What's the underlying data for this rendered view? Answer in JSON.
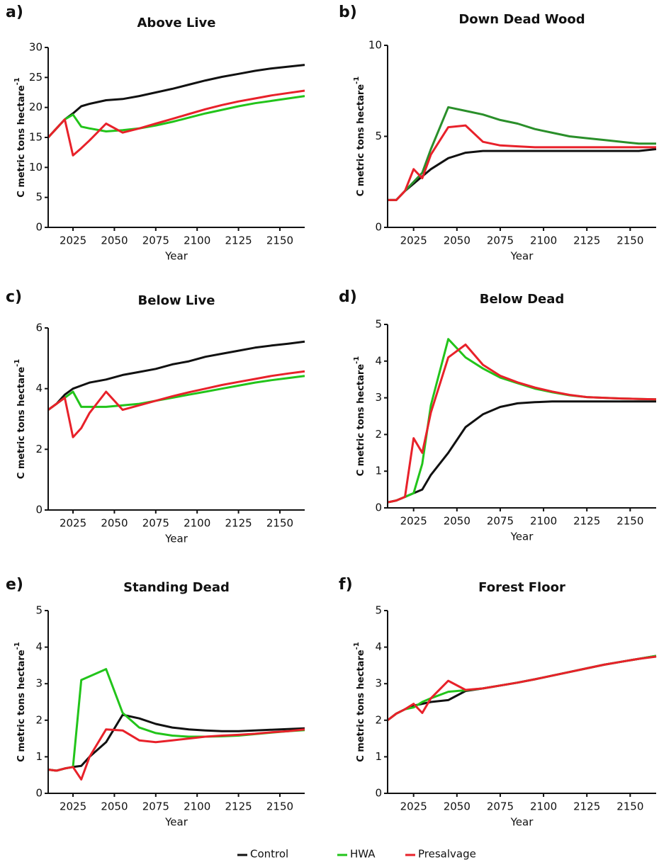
{
  "chart_data": [
    {
      "type": "line",
      "panel_label": "a)",
      "title": "Above Live",
      "xlabel": "Year",
      "ylabel": "C metric tons hectare",
      "ylabel_sup": "-1",
      "x": [
        2010,
        2015,
        2020,
        2025,
        2030,
        2035,
        2045,
        2055,
        2065,
        2075,
        2085,
        2095,
        2105,
        2115,
        2125,
        2135,
        2145,
        2155,
        2165
      ],
      "xlim": [
        2010,
        2165
      ],
      "xticks": [
        2025,
        2050,
        2075,
        2100,
        2125,
        2150
      ],
      "ylim": [
        0,
        30
      ],
      "yticks": [
        0,
        5,
        10,
        15,
        20,
        25,
        30
      ],
      "series": [
        {
          "name": "Control",
          "color": "#111111",
          "values": [
            15,
            16.5,
            18,
            19,
            20.2,
            20.6,
            21.2,
            21.4,
            21.9,
            22.5,
            23.1,
            23.8,
            24.5,
            25.1,
            25.6,
            26.1,
            26.5,
            26.8,
            27.1
          ]
        },
        {
          "name": "HWA",
          "color": "#22c41a",
          "values": [
            15,
            16.5,
            18,
            18.8,
            16.8,
            16.5,
            16,
            16.2,
            16.5,
            17,
            17.6,
            18.3,
            19,
            19.6,
            20.2,
            20.7,
            21.1,
            21.5,
            21.9
          ]
        },
        {
          "name": "Presalvage",
          "color": "#e8212a",
          "values": [
            15,
            16.5,
            18,
            12,
            13.2,
            14.5,
            17.3,
            15.8,
            16.5,
            17.3,
            18.1,
            18.9,
            19.7,
            20.4,
            21,
            21.5,
            22,
            22.4,
            22.8
          ]
        }
      ]
    },
    {
      "type": "line",
      "panel_label": "b)",
      "title": "Down Dead Wood",
      "xlabel": "Year",
      "ylabel": "C metric tons hectare",
      "ylabel_sup": "-1",
      "x": [
        2010,
        2015,
        2020,
        2025,
        2030,
        2035,
        2045,
        2055,
        2065,
        2075,
        2085,
        2095,
        2105,
        2115,
        2125,
        2135,
        2145,
        2155,
        2165
      ],
      "xlim": [
        2010,
        2165
      ],
      "xticks": [
        2025,
        2050,
        2075,
        2100,
        2125,
        2150
      ],
      "ylim": [
        0,
        10
      ],
      "yticks": [
        0,
        5,
        10
      ],
      "series": [
        {
          "name": "Control",
          "color": "#111111",
          "values": [
            1.5,
            1.5,
            2,
            2.4,
            2.8,
            3.2,
            3.8,
            4.1,
            4.2,
            4.2,
            4.2,
            4.2,
            4.2,
            4.2,
            4.2,
            4.2,
            4.2,
            4.2,
            4.3
          ]
        },
        {
          "name": "HWA",
          "color": "#2a8f2a",
          "values": [
            1.5,
            1.5,
            2,
            2.5,
            3,
            4.3,
            6.6,
            6.4,
            6.2,
            5.9,
            5.7,
            5.4,
            5.2,
            5,
            4.9,
            4.8,
            4.7,
            4.6,
            4.6
          ]
        },
        {
          "name": "Presalvage",
          "color": "#e8212a",
          "values": [
            1.5,
            1.5,
            2,
            3.2,
            2.7,
            4,
            5.5,
            5.6,
            4.7,
            4.5,
            4.45,
            4.4,
            4.4,
            4.4,
            4.4,
            4.4,
            4.4,
            4.4,
            4.4
          ]
        }
      ]
    },
    {
      "type": "line",
      "panel_label": "c)",
      "title": "Below Live",
      "xlabel": "Year",
      "ylabel": "C metric tons hectare",
      "ylabel_sup": "-1",
      "x": [
        2010,
        2015,
        2020,
        2025,
        2030,
        2035,
        2045,
        2055,
        2065,
        2075,
        2085,
        2095,
        2105,
        2115,
        2125,
        2135,
        2145,
        2155,
        2165
      ],
      "xlim": [
        2010,
        2165
      ],
      "xticks": [
        2025,
        2050,
        2075,
        2100,
        2125,
        2150
      ],
      "ylim": [
        0,
        6
      ],
      "yticks": [
        0,
        2,
        4,
        6
      ],
      "series": [
        {
          "name": "Control",
          "color": "#111111",
          "values": [
            3.3,
            3.5,
            3.8,
            4,
            4.1,
            4.2,
            4.3,
            4.45,
            4.55,
            4.65,
            4.8,
            4.9,
            5.05,
            5.15,
            5.25,
            5.35,
            5.42,
            5.48,
            5.55
          ]
        },
        {
          "name": "HWA",
          "color": "#22c41a",
          "values": [
            3.3,
            3.5,
            3.7,
            3.9,
            3.4,
            3.4,
            3.4,
            3.45,
            3.5,
            3.6,
            3.7,
            3.8,
            3.9,
            4,
            4.1,
            4.2,
            4.28,
            4.35,
            4.42
          ]
        },
        {
          "name": "Presalvage",
          "color": "#e8212a",
          "values": [
            3.3,
            3.5,
            3.7,
            2.4,
            2.7,
            3.2,
            3.9,
            3.3,
            3.45,
            3.6,
            3.75,
            3.88,
            4,
            4.12,
            4.22,
            4.32,
            4.42,
            4.5,
            4.57
          ]
        }
      ]
    },
    {
      "type": "line",
      "panel_label": "d)",
      "title": "Below Dead",
      "xlabel": "Year",
      "ylabel": "C metric tons hectare",
      "ylabel_sup": "-1",
      "x": [
        2010,
        2015,
        2020,
        2025,
        2030,
        2035,
        2045,
        2055,
        2065,
        2075,
        2085,
        2095,
        2105,
        2115,
        2125,
        2135,
        2145,
        2155,
        2165
      ],
      "xlim": [
        2010,
        2165
      ],
      "xticks": [
        2025,
        2050,
        2075,
        2100,
        2125,
        2150
      ],
      "ylim": [
        0,
        5
      ],
      "yticks": [
        0,
        1,
        2,
        3,
        4,
        5
      ],
      "series": [
        {
          "name": "Control",
          "color": "#111111",
          "values": [
            0.15,
            0.2,
            0.3,
            0.4,
            0.5,
            0.9,
            1.5,
            2.2,
            2.55,
            2.75,
            2.85,
            2.88,
            2.9,
            2.9,
            2.9,
            2.9,
            2.9,
            2.9,
            2.9
          ]
        },
        {
          "name": "HWA",
          "color": "#22c41a",
          "values": [
            0.15,
            0.2,
            0.3,
            0.4,
            1.2,
            2.8,
            4.6,
            4.1,
            3.8,
            3.55,
            3.4,
            3.25,
            3.15,
            3.07,
            3.02,
            3,
            2.98,
            2.97,
            2.96
          ]
        },
        {
          "name": "Presalvage",
          "color": "#e8212a",
          "values": [
            0.15,
            0.2,
            0.3,
            1.9,
            1.5,
            2.6,
            4.1,
            4.45,
            3.9,
            3.6,
            3.42,
            3.28,
            3.17,
            3.08,
            3.02,
            3,
            2.98,
            2.97,
            2.96
          ]
        }
      ]
    },
    {
      "type": "line",
      "panel_label": "e)",
      "title": "Standing Dead",
      "xlabel": "Year",
      "ylabel": "C metric tons hectare",
      "ylabel_sup": "-1",
      "x": [
        2010,
        2015,
        2020,
        2025,
        2030,
        2035,
        2045,
        2055,
        2065,
        2075,
        2085,
        2095,
        2105,
        2115,
        2125,
        2135,
        2145,
        2155,
        2165
      ],
      "xlim": [
        2010,
        2165
      ],
      "xticks": [
        2025,
        2050,
        2075,
        2100,
        2125,
        2150
      ],
      "ylim": [
        0,
        5
      ],
      "yticks": [
        0,
        1,
        2,
        3,
        4,
        5
      ],
      "series": [
        {
          "name": "Control",
          "color": "#111111",
          "values": [
            0.65,
            0.62,
            0.68,
            0.72,
            0.75,
            1,
            1.4,
            2.15,
            2.05,
            1.9,
            1.8,
            1.75,
            1.72,
            1.7,
            1.7,
            1.72,
            1.74,
            1.76,
            1.78
          ]
        },
        {
          "name": "HWA",
          "color": "#22c41a",
          "values": [
            0.65,
            0.62,
            0.68,
            0.72,
            3.1,
            3.2,
            3.4,
            2.2,
            1.8,
            1.65,
            1.58,
            1.55,
            1.55,
            1.56,
            1.58,
            1.62,
            1.66,
            1.7,
            1.73
          ]
        },
        {
          "name": "Presalvage",
          "color": "#e8212a",
          "values": [
            0.65,
            0.62,
            0.68,
            0.72,
            0.38,
            1,
            1.75,
            1.72,
            1.45,
            1.4,
            1.45,
            1.5,
            1.55,
            1.58,
            1.6,
            1.63,
            1.67,
            1.7,
            1.75
          ]
        }
      ]
    },
    {
      "type": "line",
      "panel_label": "f)",
      "title": "Forest Floor",
      "xlabel": "Year",
      "ylabel": "C metric tons hectare",
      "ylabel_sup": "-1",
      "x": [
        2010,
        2015,
        2020,
        2025,
        2030,
        2035,
        2045,
        2055,
        2065,
        2075,
        2085,
        2095,
        2105,
        2115,
        2125,
        2135,
        2145,
        2155,
        2165
      ],
      "xlim": [
        2010,
        2165
      ],
      "xticks": [
        2025,
        2050,
        2075,
        2100,
        2125,
        2150
      ],
      "ylim": [
        0,
        5
      ],
      "yticks": [
        0,
        1,
        2,
        3,
        4,
        5
      ],
      "series": [
        {
          "name": "Control",
          "color": "#111111",
          "values": [
            2,
            2.18,
            2.3,
            2.4,
            2.45,
            2.5,
            2.55,
            2.8,
            2.87,
            2.95,
            3.03,
            3.12,
            3.22,
            3.32,
            3.42,
            3.52,
            3.6,
            3.68,
            3.76
          ]
        },
        {
          "name": "HWA",
          "color": "#22c41a",
          "values": [
            2,
            2.18,
            2.3,
            2.35,
            2.5,
            2.6,
            2.78,
            2.82,
            2.87,
            2.95,
            3.03,
            3.12,
            3.22,
            3.32,
            3.42,
            3.52,
            3.6,
            3.68,
            3.76
          ]
        },
        {
          "name": "Presalvage",
          "color": "#e8212a",
          "values": [
            2,
            2.18,
            2.3,
            2.45,
            2.2,
            2.6,
            3.08,
            2.83,
            2.87,
            2.95,
            3.03,
            3.12,
            3.22,
            3.32,
            3.42,
            3.52,
            3.6,
            3.68,
            3.74
          ]
        }
      ]
    }
  ]
}
